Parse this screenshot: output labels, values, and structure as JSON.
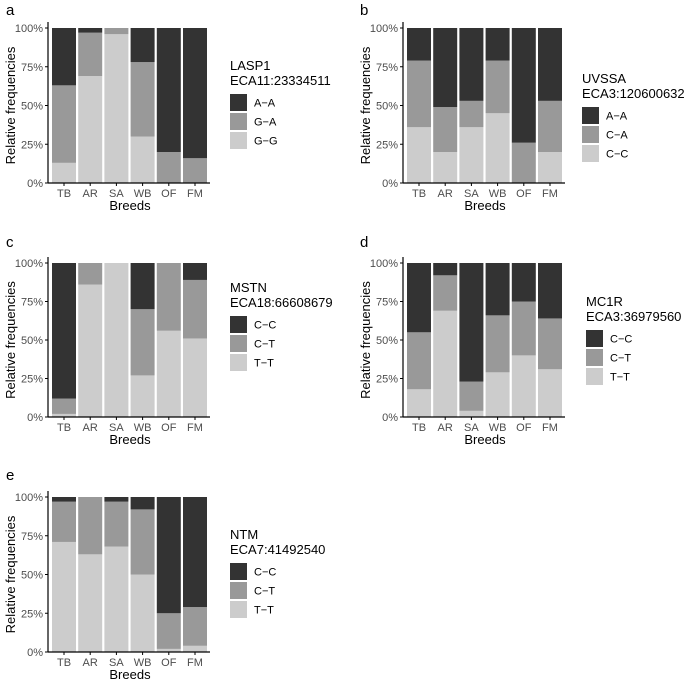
{
  "colors": {
    "dark": "#333333",
    "mid": "#999999",
    "light": "#cccccc",
    "axis": "#000000",
    "tick_text": "#4d4d4d"
  },
  "chart_data": [
    {
      "type": "bar",
      "stacked": true,
      "panel_letter": "a",
      "title": "",
      "xlabel": "Breeds",
      "ylabel": "Relative frequencies",
      "categories": [
        "TB",
        "AR",
        "SA",
        "WB",
        "OF",
        "FM"
      ],
      "y_ticks": [
        "0%",
        "25%",
        "50%",
        "75%",
        "100%"
      ],
      "ylim": [
        0,
        1
      ],
      "legend_title": [
        "LASP1",
        "ECA11:23334511"
      ],
      "series": [
        {
          "name": "A−A",
          "shade": "dark",
          "values": [
            0.37,
            0.03,
            0.0,
            0.22,
            0.8,
            0.84
          ]
        },
        {
          "name": "G−A",
          "shade": "mid",
          "values": [
            0.5,
            0.28,
            0.04,
            0.48,
            0.2,
            0.16
          ]
        },
        {
          "name": "G−G",
          "shade": "light",
          "values": [
            0.13,
            0.69,
            0.96,
            0.3,
            0.0,
            0.0
          ]
        }
      ]
    },
    {
      "type": "bar",
      "stacked": true,
      "panel_letter": "b",
      "title": "",
      "xlabel": "Breeds",
      "ylabel": "Relative frequencies",
      "categories": [
        "TB",
        "AR",
        "SA",
        "WB",
        "OF",
        "FM"
      ],
      "y_ticks": [
        "0%",
        "25%",
        "50%",
        "75%",
        "100%"
      ],
      "ylim": [
        0,
        1
      ],
      "legend_title": [
        "UVSSA",
        "ECA3:120600632"
      ],
      "series": [
        {
          "name": "A−A",
          "shade": "dark",
          "values": [
            0.21,
            0.51,
            0.47,
            0.21,
            0.74,
            0.47
          ]
        },
        {
          "name": "C−A",
          "shade": "mid",
          "values": [
            0.43,
            0.29,
            0.17,
            0.34,
            0.26,
            0.33
          ]
        },
        {
          "name": "C−C",
          "shade": "light",
          "values": [
            0.36,
            0.2,
            0.36,
            0.45,
            0.0,
            0.2
          ]
        }
      ]
    },
    {
      "type": "bar",
      "stacked": true,
      "panel_letter": "c",
      "title": "",
      "xlabel": "Breeds",
      "ylabel": "Relative frequencies",
      "categories": [
        "TB",
        "AR",
        "SA",
        "WB",
        "OF",
        "FM"
      ],
      "y_ticks": [
        "0%",
        "25%",
        "50%",
        "75%",
        "100%"
      ],
      "ylim": [
        0,
        1
      ],
      "legend_title": [
        "MSTN",
        "ECA18:66608679"
      ],
      "series": [
        {
          "name": "C−C",
          "shade": "dark",
          "values": [
            0.88,
            0.0,
            0.0,
            0.3,
            0.0,
            0.11
          ]
        },
        {
          "name": "C−T",
          "shade": "mid",
          "values": [
            0.1,
            0.14,
            0.0,
            0.43,
            0.44,
            0.38
          ]
        },
        {
          "name": "T−T",
          "shade": "light",
          "values": [
            0.02,
            0.86,
            1.0,
            0.27,
            0.56,
            0.51
          ]
        }
      ]
    },
    {
      "type": "bar",
      "stacked": true,
      "panel_letter": "d",
      "title": "",
      "xlabel": "Breeds",
      "ylabel": "Relative frequencies",
      "categories": [
        "TB",
        "AR",
        "SA",
        "WB",
        "OF",
        "FM"
      ],
      "y_ticks": [
        "0%",
        "25%",
        "50%",
        "75%",
        "100%"
      ],
      "ylim": [
        0,
        1
      ],
      "legend_title": [
        "MC1R",
        "ECA3:36979560"
      ],
      "series": [
        {
          "name": "C−C",
          "shade": "dark",
          "values": [
            0.45,
            0.08,
            0.77,
            0.34,
            0.25,
            0.36
          ]
        },
        {
          "name": "C−T",
          "shade": "mid",
          "values": [
            0.37,
            0.23,
            0.19,
            0.37,
            0.35,
            0.33
          ]
        },
        {
          "name": "T−T",
          "shade": "light",
          "values": [
            0.18,
            0.69,
            0.04,
            0.29,
            0.4,
            0.31
          ]
        }
      ]
    },
    {
      "type": "bar",
      "stacked": true,
      "panel_letter": "e",
      "title": "",
      "xlabel": "Breeds",
      "ylabel": "Relative frequencies",
      "categories": [
        "TB",
        "AR",
        "SA",
        "WB",
        "OF",
        "FM"
      ],
      "y_ticks": [
        "0%",
        "25%",
        "50%",
        "75%",
        "100%"
      ],
      "ylim": [
        0,
        1
      ],
      "legend_title": [
        "NTM",
        "ECA7:41492540"
      ],
      "series": [
        {
          "name": "C−C",
          "shade": "dark",
          "values": [
            0.03,
            0.0,
            0.03,
            0.08,
            0.75,
            0.71
          ]
        },
        {
          "name": "C−T",
          "shade": "mid",
          "values": [
            0.26,
            0.37,
            0.29,
            0.42,
            0.23,
            0.25
          ]
        },
        {
          "name": "T−T",
          "shade": "light",
          "values": [
            0.71,
            0.63,
            0.68,
            0.5,
            0.02,
            0.04
          ]
        }
      ]
    }
  ]
}
